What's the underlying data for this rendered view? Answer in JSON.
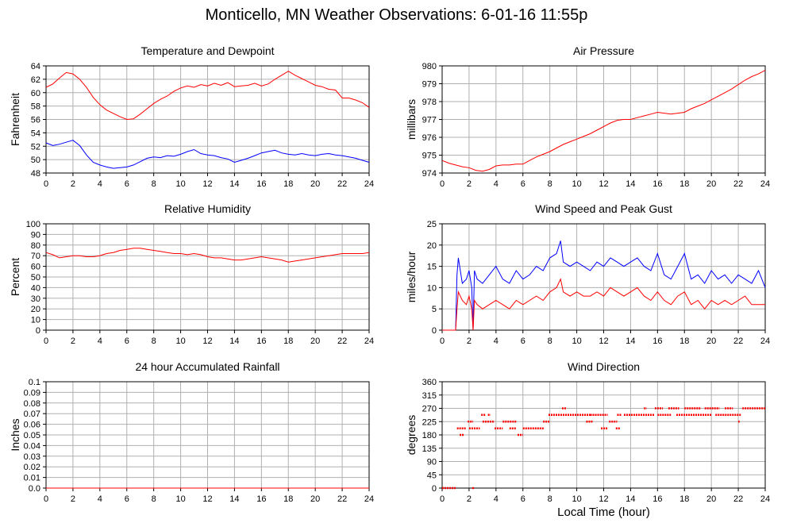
{
  "page": {
    "title": "Monticello, MN Weather Observations: 6-01-16 11:55p",
    "x_axis_label": "Local Time (hour)"
  },
  "colors": {
    "red": "#ff0000",
    "blue": "#0000ff",
    "grid": "#b0b0b0"
  },
  "chart_data": [
    {
      "id": "temp",
      "type": "line",
      "title": "Temperature and Dewpoint",
      "ylabel": "Fahrenheit",
      "xlabel": "",
      "xlim": [
        0,
        24
      ],
      "ylim": [
        48,
        64
      ],
      "xticks": [
        "0",
        "2",
        "4",
        "6",
        "8",
        "10",
        "12",
        "14",
        "16",
        "18",
        "20",
        "22",
        "24"
      ],
      "yticks": [
        "48",
        "50",
        "52",
        "54",
        "56",
        "58",
        "60",
        "62",
        "64"
      ],
      "grid": true,
      "series": [
        {
          "color": "#ff0000",
          "x": [
            0,
            0.5,
            1,
            1.5,
            2,
            2.5,
            3,
            3.5,
            4,
            4.5,
            5,
            5.5,
            6,
            6.5,
            7,
            7.5,
            8,
            8.5,
            9,
            9.5,
            10,
            10.5,
            11,
            11.5,
            12,
            12.5,
            13,
            13.5,
            14,
            14.5,
            15,
            15.5,
            16,
            16.5,
            17,
            17.5,
            18,
            18.5,
            19,
            19.5,
            20,
            20.5,
            21,
            21.5,
            22,
            22.5,
            23,
            23.5,
            24
          ],
          "y": [
            60.8,
            61.3,
            62.2,
            63.0,
            62.8,
            62.0,
            60.8,
            59.3,
            58.2,
            57.4,
            56.9,
            56.4,
            56.0,
            56.1,
            56.8,
            57.6,
            58.4,
            59.0,
            59.5,
            60.2,
            60.7,
            61.0,
            60.8,
            61.2,
            61.0,
            61.4,
            61.1,
            61.5,
            60.9,
            61.0,
            61.1,
            61.4,
            61.0,
            61.3,
            62.0,
            62.6,
            63.2,
            62.6,
            62.1,
            61.6,
            61.1,
            60.9,
            60.5,
            60.4,
            59.2,
            59.2,
            58.9,
            58.5,
            57.8
          ]
        },
        {
          "color": "#0000ff",
          "x": [
            0,
            0.5,
            1,
            1.5,
            2,
            2.5,
            3,
            3.5,
            4,
            4.5,
            5,
            5.5,
            6,
            6.5,
            7,
            7.5,
            8,
            8.5,
            9,
            9.5,
            10,
            10.5,
            11,
            11.5,
            12,
            12.5,
            13,
            13.5,
            14,
            14.5,
            15,
            15.5,
            16,
            16.5,
            17,
            17.5,
            18,
            18.5,
            19,
            19.5,
            20,
            20.5,
            21,
            21.5,
            22,
            22.5,
            23,
            23.5,
            24
          ],
          "y": [
            52.5,
            52.1,
            52.3,
            52.6,
            52.9,
            52.1,
            50.7,
            49.6,
            49.2,
            48.9,
            48.7,
            48.8,
            48.9,
            49.2,
            49.7,
            50.2,
            50.4,
            50.3,
            50.6,
            50.5,
            50.8,
            51.2,
            51.5,
            50.9,
            50.7,
            50.6,
            50.3,
            50.1,
            49.6,
            49.9,
            50.2,
            50.6,
            51.0,
            51.2,
            51.4,
            51.0,
            50.8,
            50.7,
            50.9,
            50.7,
            50.6,
            50.8,
            50.9,
            50.7,
            50.6,
            50.4,
            50.2,
            49.9,
            49.6
          ]
        }
      ]
    },
    {
      "id": "pres",
      "type": "line",
      "title": "Air Pressure",
      "ylabel": "millibars",
      "xlabel": "",
      "xlim": [
        0,
        24
      ],
      "ylim": [
        974,
        980
      ],
      "xticks": [
        "0",
        "2",
        "4",
        "6",
        "8",
        "10",
        "12",
        "14",
        "16",
        "18",
        "20",
        "22",
        "24"
      ],
      "yticks": [
        "974",
        "975",
        "976",
        "977",
        "978",
        "979",
        "980"
      ],
      "grid": true,
      "series": [
        {
          "color": "#ff0000",
          "x": [
            0,
            0.5,
            1,
            1.5,
            2,
            2.5,
            3,
            3.5,
            4,
            4.5,
            5,
            5.5,
            6,
            6.5,
            7,
            7.5,
            8,
            8.5,
            9,
            9.5,
            10,
            10.5,
            11,
            11.5,
            12,
            12.5,
            13,
            13.5,
            14,
            14.5,
            15,
            15.5,
            16,
            16.5,
            17,
            17.5,
            18,
            18.5,
            19,
            19.5,
            20,
            20.5,
            21,
            21.5,
            22,
            22.5,
            23,
            23.5,
            24
          ],
          "y": [
            974.7,
            974.55,
            974.45,
            974.35,
            974.3,
            974.15,
            974.1,
            974.2,
            974.4,
            974.45,
            974.45,
            974.5,
            974.5,
            974.7,
            974.9,
            975.05,
            975.2,
            975.4,
            975.6,
            975.75,
            975.9,
            976.05,
            976.2,
            976.4,
            976.6,
            976.8,
            976.95,
            977.0,
            977.0,
            977.1,
            977.2,
            977.3,
            977.4,
            977.35,
            977.3,
            977.35,
            977.4,
            977.6,
            977.75,
            977.9,
            978.1,
            978.3,
            978.5,
            978.7,
            978.95,
            979.2,
            979.4,
            979.55,
            979.75
          ]
        }
      ]
    },
    {
      "id": "rh",
      "type": "line",
      "title": "Relative Humidity",
      "ylabel": "Percent",
      "xlabel": "",
      "xlim": [
        0,
        24
      ],
      "ylim": [
        0,
        100
      ],
      "xticks": [
        "0",
        "2",
        "4",
        "6",
        "8",
        "10",
        "12",
        "14",
        "16",
        "18",
        "20",
        "22",
        "24"
      ],
      "yticks": [
        "0",
        "10",
        "20",
        "30",
        "40",
        "50",
        "60",
        "70",
        "80",
        "90",
        "100"
      ],
      "grid": true,
      "series": [
        {
          "color": "#ff0000",
          "x": [
            0,
            0.5,
            1,
            1.5,
            2,
            2.5,
            3,
            3.5,
            4,
            4.5,
            5,
            5.5,
            6,
            6.5,
            7,
            7.5,
            8,
            8.5,
            9,
            9.5,
            10,
            10.5,
            11,
            11.5,
            12,
            12.5,
            13,
            13.5,
            14,
            14.5,
            15,
            15.5,
            16,
            16.5,
            17,
            17.5,
            18,
            18.5,
            19,
            19.5,
            20,
            20.5,
            21,
            21.5,
            22,
            22.5,
            23,
            23.5,
            24
          ],
          "y": [
            73,
            71,
            68,
            69,
            70,
            70,
            69,
            69,
            70,
            72,
            73,
            75,
            76,
            77,
            77,
            76,
            75,
            74,
            73,
            72,
            72,
            71,
            72,
            71,
            69,
            68,
            68,
            67,
            66,
            66,
            67,
            68,
            69,
            68,
            67,
            66,
            64,
            65,
            66,
            67,
            68,
            69,
            70,
            71,
            72,
            72,
            72,
            72,
            73
          ]
        }
      ]
    },
    {
      "id": "wind",
      "type": "line",
      "title": "Wind Speed and Peak Gust",
      "ylabel": "miles/hour",
      "xlabel": "",
      "xlim": [
        0,
        24
      ],
      "ylim": [
        0,
        25
      ],
      "xticks": [
        "0",
        "2",
        "4",
        "6",
        "8",
        "10",
        "12",
        "14",
        "16",
        "18",
        "20",
        "22",
        "24"
      ],
      "yticks": [
        "0",
        "5",
        "10",
        "15",
        "20",
        "25"
      ],
      "grid": true,
      "series": [
        {
          "color": "#0000ff",
          "x": [
            0,
            0.5,
            1,
            1.1,
            1.2,
            1.5,
            1.8,
            2.0,
            2.2,
            2.3,
            2.4,
            2.6,
            3,
            3.5,
            4,
            4.5,
            5,
            5.5,
            6,
            6.5,
            7,
            7.5,
            8,
            8.5,
            8.8,
            9,
            9.5,
            10,
            10.5,
            11,
            11.5,
            12,
            12.5,
            13,
            13.5,
            14,
            14.5,
            15,
            15.5,
            16,
            16.5,
            17,
            17.5,
            18,
            18.5,
            19,
            19.5,
            20,
            20.5,
            21,
            21.5,
            22,
            22.5,
            23,
            23.5,
            24
          ],
          "y": [
            0,
            0,
            0,
            13,
            17,
            11,
            12,
            14,
            10,
            0,
            14,
            12,
            11,
            13,
            15,
            12,
            11,
            14,
            12,
            13,
            15,
            14,
            17,
            18,
            21,
            16,
            15,
            16,
            15,
            14,
            16,
            15,
            17,
            16,
            15,
            16,
            17,
            15,
            14,
            18,
            13,
            12,
            15,
            18,
            12,
            13,
            11,
            14,
            12,
            13,
            11,
            13,
            12,
            11,
            14,
            10
          ]
        },
        {
          "color": "#ff0000",
          "x": [
            0,
            0.5,
            1,
            1.1,
            1.2,
            1.5,
            1.8,
            2.0,
            2.2,
            2.3,
            2.4,
            2.6,
            3,
            3.5,
            4,
            4.5,
            5,
            5.5,
            6,
            6.5,
            7,
            7.5,
            8,
            8.5,
            8.8,
            9,
            9.5,
            10,
            10.5,
            11,
            11.5,
            12,
            12.5,
            13,
            13.5,
            14,
            14.5,
            15,
            15.5,
            16,
            16.5,
            17,
            17.5,
            18,
            18.5,
            19,
            19.5,
            20,
            20.5,
            21,
            21.5,
            22,
            22.5,
            23,
            23.5,
            24
          ],
          "y": [
            0,
            0,
            0,
            5,
            9,
            7,
            6,
            8,
            5,
            0,
            7,
            6,
            5,
            6,
            7,
            6,
            5,
            7,
            6,
            7,
            8,
            7,
            9,
            10,
            12,
            9,
            8,
            9,
            8,
            8,
            9,
            8,
            10,
            9,
            8,
            9,
            10,
            8,
            7,
            9,
            7,
            6,
            8,
            9,
            6,
            7,
            5,
            7,
            6,
            7,
            6,
            7,
            8,
            6,
            6,
            6
          ]
        }
      ]
    },
    {
      "id": "rain",
      "type": "line",
      "title": "24 hour Accumulated Rainfall",
      "ylabel": "Inches",
      "xlabel": "",
      "xlim": [
        0,
        24
      ],
      "ylim": [
        0,
        0.1
      ],
      "xticks": [
        "0",
        "2",
        "4",
        "6",
        "8",
        "10",
        "12",
        "14",
        "16",
        "18",
        "20",
        "22",
        "24"
      ],
      "yticks": [
        "0.0",
        "0.01",
        "0.02",
        "0.03",
        "0.04",
        "0.05",
        "0.06",
        "0.07",
        "0.08",
        "0.09",
        "0.1"
      ],
      "grid": true,
      "series": [
        {
          "color": "#ff0000",
          "x": [
            0,
            24
          ],
          "y": [
            0,
            0
          ]
        }
      ]
    },
    {
      "id": "dir",
      "type": "scatter",
      "title": "Wind Direction",
      "ylabel": "degrees",
      "xlabel": "Local Time (hour)",
      "xlim": [
        0,
        24
      ],
      "ylim": [
        0,
        360
      ],
      "xticks": [
        "0",
        "2",
        "4",
        "6",
        "8",
        "10",
        "12",
        "14",
        "16",
        "18",
        "20",
        "22",
        "24"
      ],
      "yticks": [
        "0",
        "45",
        "90",
        "135",
        "180",
        "225",
        "270",
        "315",
        "360"
      ],
      "grid": true,
      "series": [
        {
          "color": "#ff0000",
          "segments": [
            {
              "x0": 0.0,
              "x1": 1.0,
              "y": 0
            },
            {
              "x0": 1.1,
              "x1": 1.8,
              "y": 202
            },
            {
              "x0": 1.3,
              "x1": 1.6,
              "y": 180
            },
            {
              "x0": 1.9,
              "x1": 2.3,
              "y": 225
            },
            {
              "x0": 2.0,
              "x1": 2.8,
              "y": 202
            },
            {
              "x0": 2.9,
              "x1": 3.2,
              "y": 248
            },
            {
              "x0": 3.0,
              "x1": 3.9,
              "y": 225
            },
            {
              "x0": 3.4,
              "x1": 3.6,
              "y": 248
            },
            {
              "x0": 3.9,
              "x1": 4.5,
              "y": 202
            },
            {
              "x0": 4.5,
              "x1": 5.5,
              "y": 225
            },
            {
              "x0": 5.0,
              "x1": 5.5,
              "y": 202
            },
            {
              "x0": 5.6,
              "x1": 6.0,
              "y": 180
            },
            {
              "x0": 6.0,
              "x1": 7.6,
              "y": 202
            },
            {
              "x0": 7.5,
              "x1": 8.0,
              "y": 225
            },
            {
              "x0": 7.9,
              "x1": 11.0,
              "y": 248
            },
            {
              "x0": 8.9,
              "x1": 9.2,
              "y": 270
            },
            {
              "x0": 10.7,
              "x1": 11.2,
              "y": 225
            },
            {
              "x0": 11.0,
              "x1": 12.3,
              "y": 248
            },
            {
              "x0": 11.8,
              "x1": 12.3,
              "y": 202
            },
            {
              "x0": 12.4,
              "x1": 13.0,
              "y": 225
            },
            {
              "x0": 12.9,
              "x1": 13.2,
              "y": 202
            },
            {
              "x0": 13.0,
              "x1": 13.3,
              "y": 248
            },
            {
              "x0": 13.5,
              "x1": 15.8,
              "y": 248
            },
            {
              "x0": 15.0,
              "x1": 15.2,
              "y": 270
            },
            {
              "x0": 15.8,
              "x1": 16.4,
              "y": 270
            },
            {
              "x0": 16.0,
              "x1": 17.0,
              "y": 248
            },
            {
              "x0": 16.8,
              "x1": 17.6,
              "y": 270
            },
            {
              "x0": 17.4,
              "x1": 20.0,
              "y": 248
            },
            {
              "x0": 18.0,
              "x1": 19.2,
              "y": 270
            },
            {
              "x0": 19.5,
              "x1": 20.6,
              "y": 270
            },
            {
              "x0": 20.3,
              "x1": 22.2,
              "y": 248
            },
            {
              "x0": 21.0,
              "x1": 21.6,
              "y": 270
            },
            {
              "x0": 22.3,
              "x1": 24.0,
              "y": 270
            },
            {
              "x0": 22.0,
              "x1": 22.1,
              "y": 225
            }
          ],
          "points": [
            {
              "x": 2.3,
              "y": 0
            }
          ]
        }
      ]
    }
  ]
}
